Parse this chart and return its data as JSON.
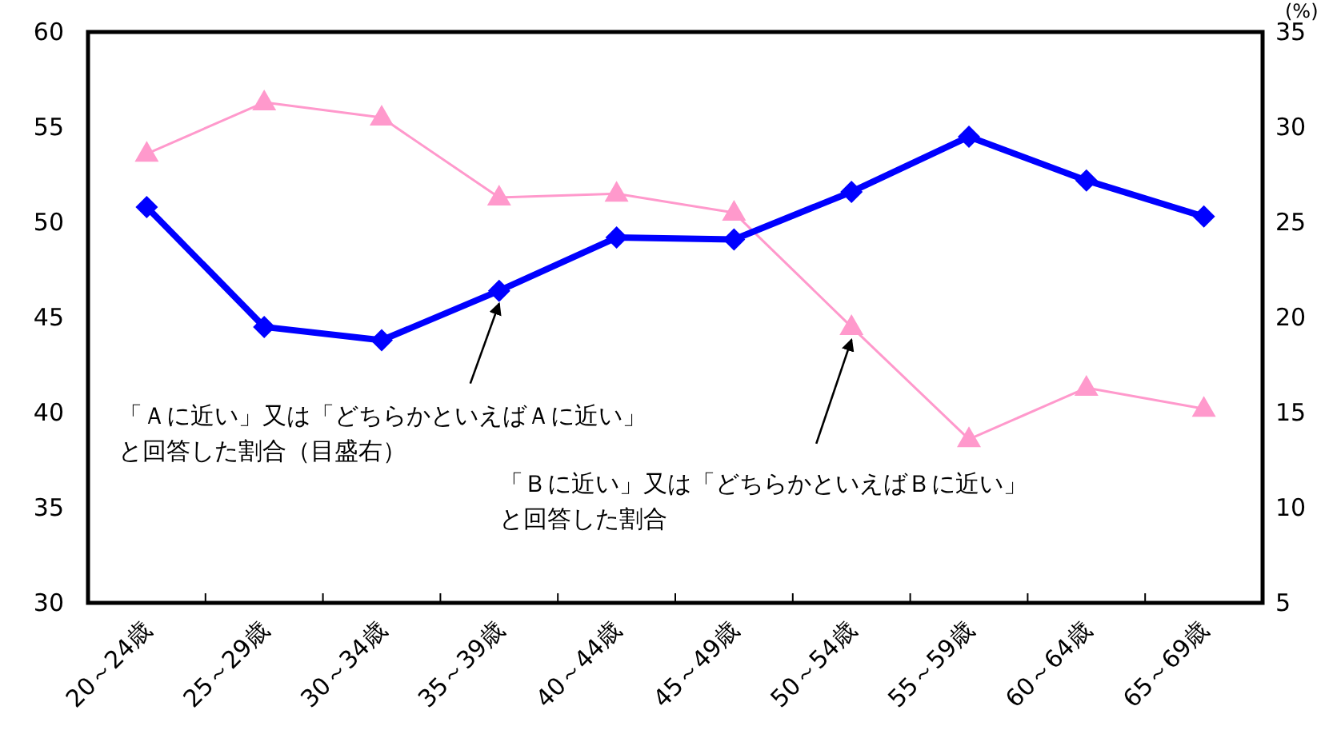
{
  "chart_data": {
    "type": "line",
    "categories": [
      "20～24歳",
      "25～29歳",
      "30～34歳",
      "35～39歳",
      "40～44歳",
      "45～49歳",
      "50～54歳",
      "55～59歳",
      "60～64歳",
      "65～69歳"
    ],
    "series": [
      {
        "color": "#ff99cc",
        "marker": "triangle",
        "values": [
          53.6,
          56.3,
          55.5,
          51.3,
          51.5,
          50.5,
          44.5,
          38.6,
          41.3,
          40.2
        ]
      },
      {
        "color": "#0000ff",
        "marker": "diamond",
        "axis": "y2",
        "values": [
          25.8,
          19.5,
          18.8,
          21.4,
          24.2,
          24.1,
          26.6,
          29.5,
          27.2,
          25.3
        ]
      }
    ],
    "ylim": [
      30,
      60
    ],
    "yticks": [
      30,
      35,
      40,
      45,
      50,
      55,
      60
    ],
    "y2lim": [
      5,
      35
    ],
    "y2ticks": [
      5,
      10,
      15,
      20,
      25,
      30,
      35
    ],
    "y2label": "(%)",
    "grid": false,
    "annotations": [
      {
        "text": "「Ａに近い」又は「どちらかといえばＡに近い」と回答した割合（目盛右）",
        "x": "35～39歳",
        "y": 46.4
      },
      {
        "text": "「Ｂに近い」又は「どちらかといえばＢに近い」と回答した割合",
        "x": "50～54歳",
        "y": 44.5
      }
    ]
  }
}
